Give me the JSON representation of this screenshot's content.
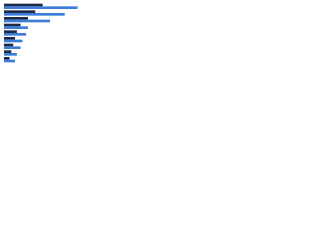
{
  "chart_data": {
    "type": "hbar",
    "categories": [
      null,
      null,
      null,
      null,
      null,
      null,
      null,
      null,
      null
    ],
    "series": [
      {
        "color": "#1b2a47",
        "values": [
          42,
          34,
          26,
          18,
          14,
          12,
          10,
          8,
          6
        ]
      },
      {
        "color": "#3b7dd8",
        "values": [
          80,
          66,
          50,
          26,
          24,
          20,
          18,
          14,
          12
        ]
      }
    ],
    "xlim": [
      0,
      100
    ]
  }
}
